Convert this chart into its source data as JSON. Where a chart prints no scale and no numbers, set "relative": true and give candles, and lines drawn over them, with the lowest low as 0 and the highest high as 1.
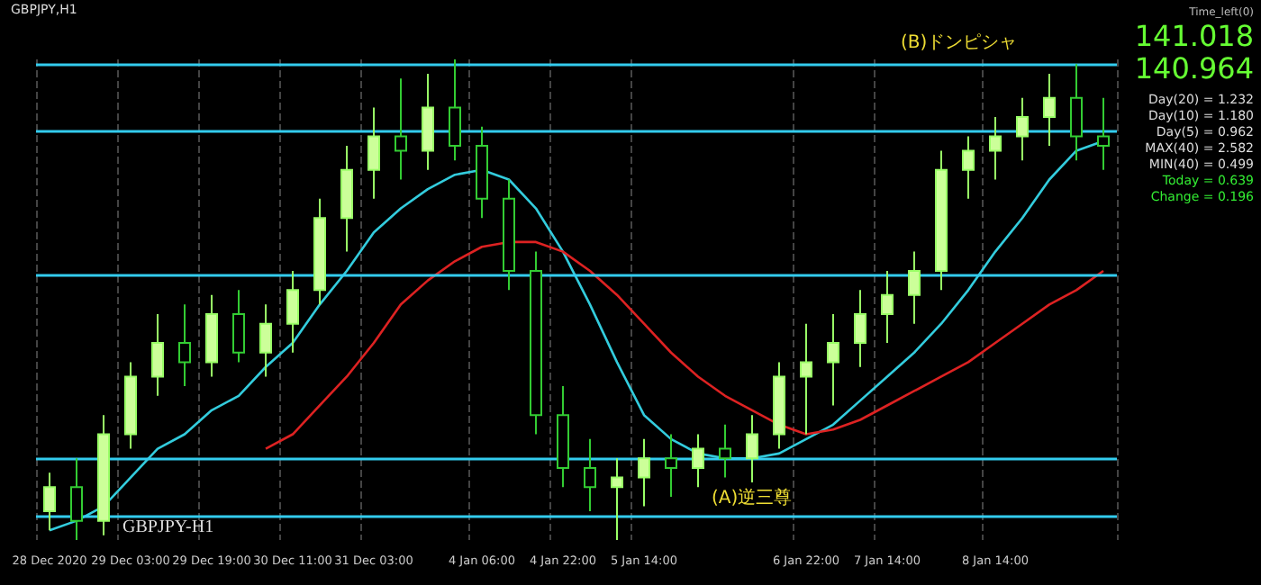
{
  "chart_data": {
    "type": "candlestick",
    "relative": true,
    "grid": "x",
    "categories": [
      "28 Dec 2020",
      null,
      null,
      "29 Dec 03:00",
      null,
      null,
      "29 Dec 19:00",
      null,
      null,
      "30 Dec 11:00",
      null,
      null,
      "31 Dec 03:00",
      null,
      null,
      null,
      "4 Jan 06:00",
      null,
      null,
      "4 Jan 22:00",
      null,
      null,
      "5 Jan 14:00",
      null,
      null,
      null,
      null,
      null,
      "6 Jan 22:00",
      null,
      null,
      "7 Jan 14:00",
      null,
      null,
      null,
      "8 Jan 14:00",
      null,
      null,
      null,
      null
    ],
    "ohlc": [
      [
        0.06,
        0.14,
        0.02,
        0.11
      ],
      [
        0.11,
        0.17,
        0,
        0.04
      ],
      [
        0.04,
        0.26,
        0.01,
        0.22
      ],
      [
        0.22,
        0.37,
        0.19,
        0.34
      ],
      [
        0.34,
        0.47,
        0.3,
        0.41
      ],
      [
        0.41,
        0.49,
        0.32,
        0.37
      ],
      [
        0.37,
        0.51,
        0.34,
        0.47
      ],
      [
        0.47,
        0.52,
        0.37,
        0.39
      ],
      [
        0.39,
        0.49,
        0.34,
        0.45
      ],
      [
        0.45,
        0.56,
        0.39,
        0.52
      ],
      [
        0.52,
        0.71,
        0.49,
        0.67
      ],
      [
        0.67,
        0.82,
        0.6,
        0.77
      ],
      [
        0.77,
        0.9,
        0.71,
        0.84
      ],
      [
        0.84,
        0.96,
        0.75,
        0.81
      ],
      [
        0.81,
        0.97,
        0.77,
        0.9
      ],
      [
        0.9,
        1,
        0.79,
        0.82
      ],
      [
        0.82,
        0.86,
        0.67,
        0.71
      ],
      [
        0.71,
        0.75,
        0.52,
        0.56
      ],
      [
        0.56,
        0.6,
        0.22,
        0.26
      ],
      [
        0.26,
        0.32,
        0.11,
        0.15
      ],
      [
        0.15,
        0.21,
        0.06,
        0.11
      ],
      [
        0.11,
        0.17,
        0,
        0.13
      ],
      [
        0.13,
        0.21,
        0.07,
        0.17
      ],
      [
        0.17,
        0.22,
        0.09,
        0.15
      ],
      [
        0.15,
        0.22,
        0.11,
        0.19
      ],
      [
        0.19,
        0.24,
        0.13,
        0.17
      ],
      [
        0.17,
        0.26,
        0.12,
        0.22
      ],
      [
        0.22,
        0.37,
        0.19,
        0.34
      ],
      [
        0.34,
        0.45,
        0.22,
        0.37
      ],
      [
        0.37,
        0.47,
        0.28,
        0.41
      ],
      [
        0.41,
        0.52,
        0.36,
        0.47
      ],
      [
        0.47,
        0.56,
        0.41,
        0.51
      ],
      [
        0.51,
        0.6,
        0.45,
        0.56
      ],
      [
        0.56,
        0.81,
        0.52,
        0.77
      ],
      [
        0.77,
        0.84,
        0.71,
        0.81
      ],
      [
        0.81,
        0.88,
        0.75,
        0.84
      ],
      [
        0.84,
        0.92,
        0.79,
        0.88
      ],
      [
        0.88,
        0.97,
        0.82,
        0.92
      ],
      [
        0.92,
        0.99,
        0.79,
        0.84
      ],
      [
        0.84,
        0.92,
        0.77,
        0.82
      ]
    ],
    "series": [
      {
        "type": "line",
        "color": "#33ccdd",
        "values": [
          0.02,
          0.04,
          0.07,
          0.13,
          0.19,
          0.22,
          0.27,
          0.3,
          0.36,
          0.41,
          0.49,
          0.56,
          0.64,
          0.69,
          0.73,
          0.76,
          0.77,
          0.75,
          0.69,
          0.6,
          0.49,
          0.37,
          0.26,
          0.21,
          0.18,
          0.17,
          0.17,
          0.18,
          0.21,
          0.24,
          0.29,
          0.34,
          0.39,
          0.45,
          0.52,
          0.6,
          0.67,
          0.75,
          0.81,
          0.83
        ]
      },
      {
        "type": "line",
        "color": "#dd2222",
        "values": [
          null,
          null,
          null,
          null,
          null,
          null,
          null,
          null,
          0.19,
          0.22,
          0.28,
          0.34,
          0.41,
          0.49,
          0.54,
          0.58,
          0.61,
          0.62,
          0.62,
          0.6,
          0.56,
          0.51,
          0.45,
          0.39,
          0.34,
          0.3,
          0.27,
          0.24,
          0.22,
          0.23,
          0.25,
          0.28,
          0.31,
          0.34,
          0.37,
          0.41,
          0.45,
          0.49,
          0.52,
          0.56
        ]
      }
    ],
    "ref_lines": [
      {
        "axis": "y",
        "value": 0.99,
        "color": "#33ccee"
      },
      {
        "axis": "y",
        "value": 0.85,
        "color": "#33ccee"
      },
      {
        "axis": "y",
        "value": 0.55,
        "color": "#33ccee"
      },
      {
        "axis": "y",
        "value": 0.17,
        "color": "#33ccee"
      },
      {
        "axis": "y",
        "value": 0.05,
        "color": "#33ccee"
      }
    ],
    "annotations": [
      "GBPJPY,H1",
      "Time_left(0)",
      "141.018",
      "140.964",
      "Day(20) = 1.232",
      "Day(10) = 1.180",
      "Day(5) = 0.962",
      "MAX(40) = 2.582",
      "MIN(40) = 0.499",
      "Today = 0.639",
      "Change = 0.196",
      "(B)ドンピシャ",
      "(A)逆三尊",
      "GBPJPY-H1"
    ]
  }
}
